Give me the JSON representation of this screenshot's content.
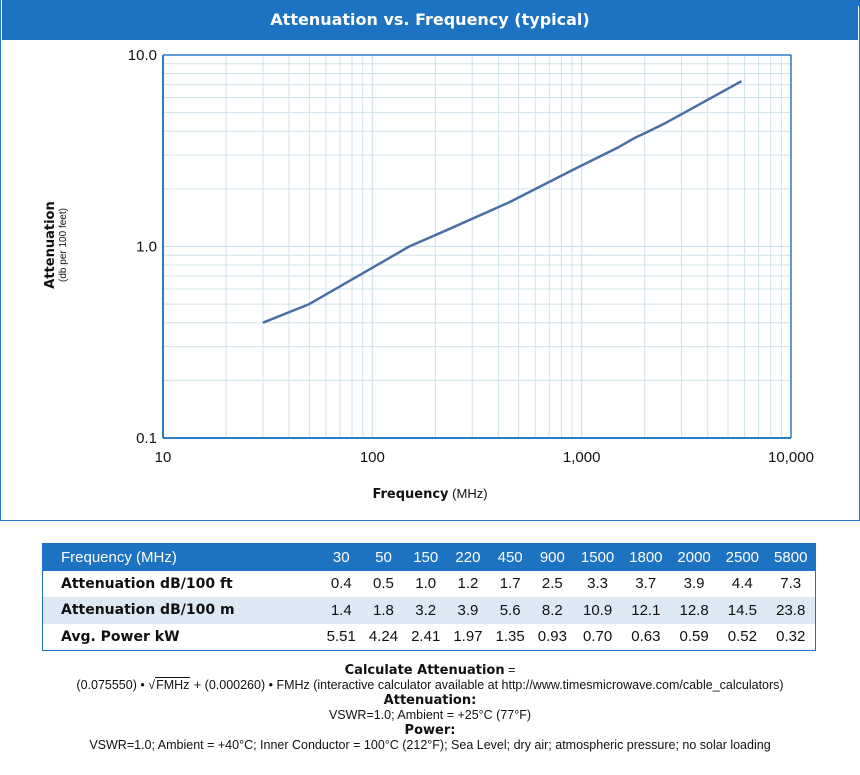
{
  "title": "Attenuation vs. Frequency (typical)",
  "chart_data": {
    "type": "line",
    "title": "Attenuation vs. Frequency (typical)",
    "xlabel": "Frequency",
    "xlabel_unit": "(MHz)",
    "ylabel": "Attenuation",
    "ylabel_sub": "(db per 100 feet)",
    "xscale": "log",
    "yscale": "log",
    "xlim": [
      10,
      10000
    ],
    "ylim": [
      0.1,
      10
    ],
    "x_ticks": [
      {
        "v": 10,
        "label": "10"
      },
      {
        "v": 100,
        "label": "100"
      },
      {
        "v": 1000,
        "label": "1,000"
      },
      {
        "v": 10000,
        "label": "10,000"
      }
    ],
    "y_ticks": [
      {
        "v": 0.1,
        "label": "0.1"
      },
      {
        "v": 1,
        "label": "1.0"
      },
      {
        "v": 10,
        "label": "10.0"
      }
    ],
    "grid": true,
    "series": [
      {
        "x": [
          30,
          50,
          150,
          220,
          450,
          900,
          1500,
          1800,
          2000,
          2500,
          5800
        ],
        "y": [
          0.4,
          0.5,
          1.0,
          1.2,
          1.7,
          2.5,
          3.3,
          3.7,
          3.9,
          4.4,
          7.3
        ],
        "color": "#4a6fa5"
      }
    ]
  },
  "table": {
    "header_label": "Frequency (MHz)",
    "frequencies": [
      "30",
      "50",
      "150",
      "220",
      "450",
      "900",
      "1500",
      "1800",
      "2000",
      "2500",
      "5800"
    ],
    "rows": [
      {
        "label": "Attenuation dB/100 ft",
        "values": [
          "0.4",
          "0.5",
          "1.0",
          "1.2",
          "1.7",
          "2.5",
          "3.3",
          "3.7",
          "3.9",
          "4.4",
          "7.3"
        ]
      },
      {
        "label": "Attenuation dB/100 m",
        "values": [
          "1.4",
          "1.8",
          "3.2",
          "3.9",
          "5.6",
          "8.2",
          "10.9",
          "12.1",
          "12.8",
          "14.5",
          "23.8"
        ]
      },
      {
        "label": "Avg. Power kW",
        "values": [
          "5.51",
          "4.24",
          "2.41",
          "1.97",
          "1.35",
          "0.93",
          "0.70",
          "0.63",
          "0.59",
          "0.52",
          "0.32"
        ]
      }
    ]
  },
  "notes": {
    "calc_heading": "Calculate Attenuation",
    "calc_eq": " =",
    "formula_a": "(0.075550) •",
    "formula_sqrt": "FMHz",
    "formula_b": "+  (0.000260) •  FMHz (interactive calculator available at http://www.timesmicrowave.com/cable_calculators)",
    "att_heading": "Attenuation:",
    "att_conditions": "VSWR=1.0; Ambient = +25°C (77°F)",
    "power_heading": "Power:",
    "power_conditions": "VSWR=1.0; Ambient = +40°C; Inner Conductor = 100°C (212°F); Sea Level; dry air; atmospheric pressure; no solar loading"
  },
  "colors": {
    "header_blue": "#1e72c2",
    "alt_row": "#dde8f5",
    "grid": "#d0e3ea",
    "line": "#4a6fa5"
  }
}
